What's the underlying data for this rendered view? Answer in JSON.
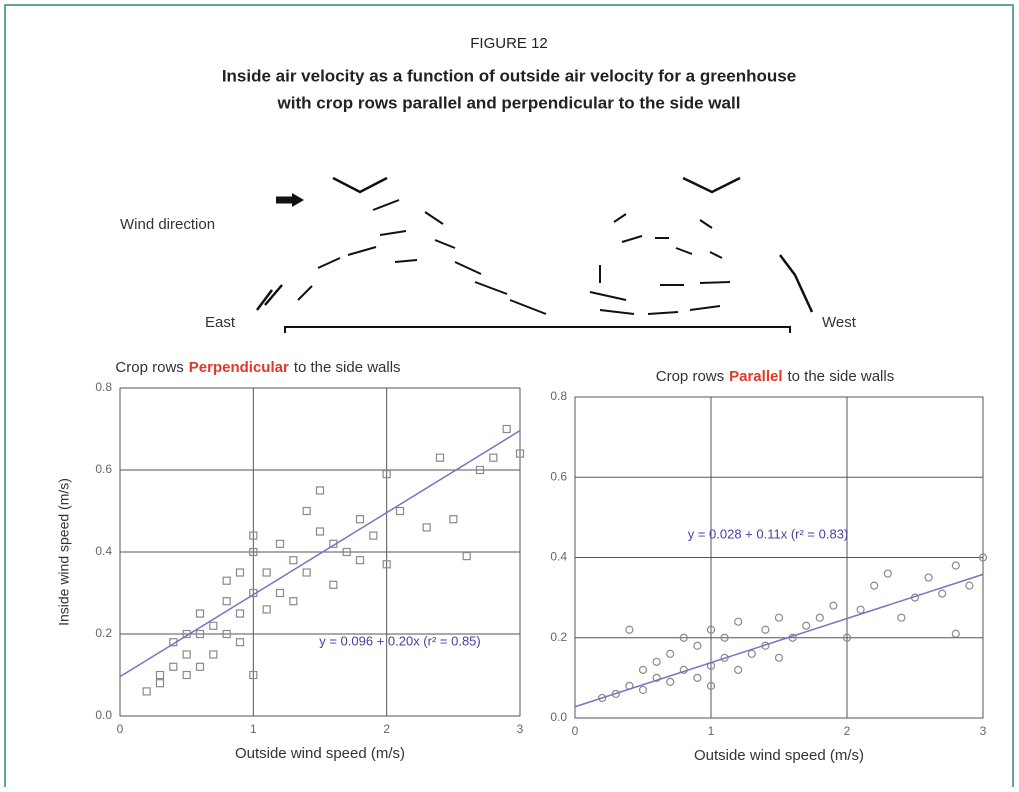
{
  "figure_label": "FIGURE 12",
  "title_lines": [
    "Inside air velocity as a function of outside air velocity for a greenhouse",
    "with crop rows parallel and perpendicular to the side wall"
  ],
  "diagram": {
    "wind_label": "Wind direction",
    "east": "East",
    "west": "West"
  },
  "chart_data": [
    {
      "type": "scatter",
      "title_prefix": "Crop rows",
      "title_highlight": "Perpendicular",
      "title_suffix": "to the side walls",
      "xlabel": "Outside wind speed (m/s)",
      "ylabel": "Inside wind speed (m/s)",
      "xlim": [
        0,
        3
      ],
      "xticks": [
        0,
        1,
        2,
        3
      ],
      "ylim": [
        0,
        0.8
      ],
      "yticks": [
        {
          "value": 0,
          "label": "0.0"
        },
        0.2,
        0.4,
        0.6,
        0.8
      ],
      "grid": true,
      "marker": "square",
      "color": "#8a8a8a",
      "x": [
        0.2,
        0.3,
        0.3,
        0.4,
        0.4,
        0.5,
        0.5,
        0.5,
        0.6,
        0.6,
        0.6,
        0.7,
        0.7,
        0.8,
        0.8,
        0.8,
        0.9,
        0.9,
        0.9,
        1.0,
        1.0,
        1.0,
        1.0,
        1.1,
        1.1,
        1.2,
        1.2,
        1.3,
        1.3,
        1.4,
        1.4,
        1.5,
        1.5,
        1.6,
        1.6,
        1.7,
        1.8,
        1.8,
        1.9,
        2.0,
        2.0,
        2.1,
        2.3,
        2.4,
        2.5,
        2.6,
        2.7,
        2.8,
        2.9,
        3.0
      ],
      "values": [
        0.06,
        0.08,
        0.1,
        0.12,
        0.18,
        0.1,
        0.15,
        0.2,
        0.12,
        0.2,
        0.25,
        0.15,
        0.22,
        0.2,
        0.28,
        0.33,
        0.18,
        0.25,
        0.35,
        0.1,
        0.3,
        0.4,
        0.44,
        0.26,
        0.35,
        0.3,
        0.42,
        0.28,
        0.38,
        0.35,
        0.5,
        0.45,
        0.55,
        0.32,
        0.42,
        0.4,
        0.38,
        0.48,
        0.44,
        0.37,
        0.59,
        0.5,
        0.46,
        0.63,
        0.48,
        0.39,
        0.6,
        0.63,
        0.7,
        0.64
      ],
      "fit": {
        "intercept": 0.096,
        "slope": 0.2,
        "color": "#7a72c4"
      },
      "annotation": "y = 0.096 + 0.20x (r² = 0.85)"
    },
    {
      "type": "scatter",
      "title_prefix": "Crop rows",
      "title_highlight": "Parallel",
      "title_suffix": "to the side walls",
      "xlabel": "Outside wind speed (m/s)",
      "xlim": [
        0,
        3
      ],
      "xticks": [
        0,
        1,
        2,
        3
      ],
      "ylim": [
        0,
        0.8
      ],
      "yticks": [
        {
          "value": 0,
          "label": "0.0"
        },
        0.2,
        0.4,
        0.6,
        0.8
      ],
      "grid": true,
      "marker": "circle",
      "color": "#8a8a8a",
      "x": [
        0.2,
        0.3,
        0.4,
        0.4,
        0.5,
        0.5,
        0.6,
        0.6,
        0.7,
        0.7,
        0.8,
        0.8,
        0.9,
        0.9,
        1.0,
        1.0,
        1.0,
        1.1,
        1.1,
        1.2,
        1.2,
        1.3,
        1.4,
        1.4,
        1.5,
        1.5,
        1.6,
        1.7,
        1.8,
        1.9,
        2.0,
        2.1,
        2.2,
        2.3,
        2.4,
        2.5,
        2.6,
        2.7,
        2.8,
        2.8,
        2.9,
        3.0
      ],
      "values": [
        0.05,
        0.06,
        0.08,
        0.22,
        0.07,
        0.12,
        0.1,
        0.14,
        0.09,
        0.16,
        0.12,
        0.2,
        0.1,
        0.18,
        0.08,
        0.13,
        0.22,
        0.15,
        0.2,
        0.12,
        0.24,
        0.16,
        0.18,
        0.22,
        0.15,
        0.25,
        0.2,
        0.23,
        0.25,
        0.28,
        0.2,
        0.27,
        0.33,
        0.36,
        0.25,
        0.3,
        0.35,
        0.31,
        0.38,
        0.21,
        0.33,
        0.4
      ],
      "fit": {
        "intercept": 0.028,
        "slope": 0.11,
        "color": "#7a72c4"
      },
      "annotation": "y = 0.028 + 0.11x (r² = 0.83)"
    }
  ]
}
